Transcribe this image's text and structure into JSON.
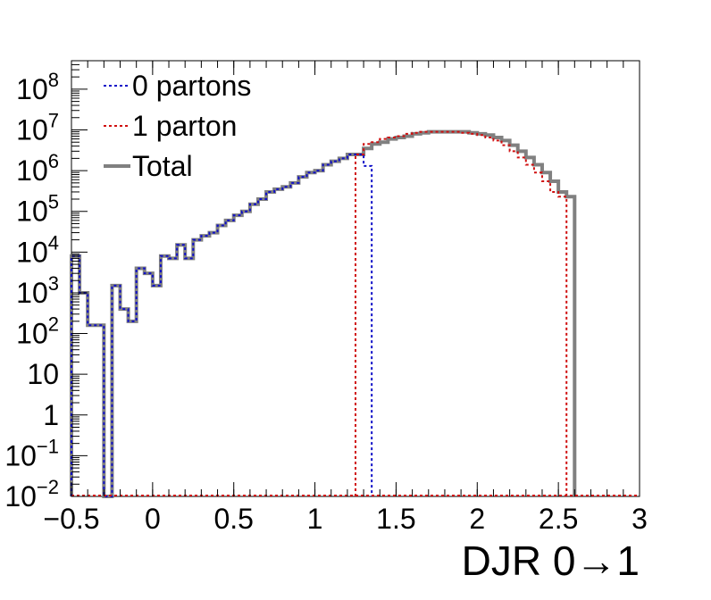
{
  "chart_data": {
    "type": "line",
    "style": "step-histogram",
    "xlabel": "DJR 0→1",
    "ylabel": "",
    "xlim": [
      -0.5,
      3.0
    ],
    "ylim": [
      0.01,
      500000000
    ],
    "y_scale": "log",
    "grid": false,
    "legend_position": "top-left",
    "x_ticks": [
      -0.5,
      0,
      0.5,
      1,
      1.5,
      2,
      2.5,
      3
    ],
    "x_tick_labels": [
      "−0.5",
      "0",
      "0.5",
      "1",
      "1.5",
      "2",
      "2.5",
      "3"
    ],
    "y_ticks": [
      {
        "value": 0.01,
        "base": "10",
        "exp": "−2"
      },
      {
        "value": 0.1,
        "base": "10",
        "exp": "−1"
      },
      {
        "value": 1,
        "base": "1",
        "exp": ""
      },
      {
        "value": 10,
        "base": "10",
        "exp": ""
      },
      {
        "value": 100,
        "base": "10",
        "exp": "2"
      },
      {
        "value": 1000,
        "base": "10",
        "exp": "3"
      },
      {
        "value": 10000,
        "base": "10",
        "exp": "4"
      },
      {
        "value": 100000,
        "base": "10",
        "exp": "5"
      },
      {
        "value": 1000000,
        "base": "10",
        "exp": "6"
      },
      {
        "value": 10000000,
        "base": "10",
        "exp": "7"
      },
      {
        "value": 100000000,
        "base": "10",
        "exp": "8"
      }
    ],
    "legend": [
      {
        "label": "0 partons",
        "color": "#1010c8",
        "style": "dotted"
      },
      {
        "label": "1 parton",
        "color": "#d01010",
        "style": "dotted"
      },
      {
        "label": "Total",
        "color": "#808080",
        "style": "solid"
      }
    ],
    "bin_width": 0.05,
    "series": [
      {
        "name": "Total",
        "color": "#808080",
        "x_start": -0.5,
        "values": [
          8000,
          1000,
          160,
          160,
          0.01,
          1500,
          400,
          200,
          4000,
          3000,
          1500,
          8000,
          7000,
          15000,
          7000,
          20000,
          25000,
          30000,
          45000,
          60000,
          80000,
          100000,
          150000,
          200000,
          300000,
          350000,
          400000,
          500000,
          700000,
          900000,
          1000000,
          1400000,
          1700000,
          2000000,
          2500000,
          2500000,
          3500000,
          4500000,
          5000000,
          6000000,
          6500000,
          7000000,
          8000000,
          8500000,
          9000000,
          9000000,
          9000000,
          9000000,
          9000000,
          8500000,
          8000000,
          7500000,
          6500000,
          5500000,
          4200000,
          3000000,
          2100000,
          1400000,
          900000,
          550000,
          300000,
          230000
        ]
      },
      {
        "name": "0 partons",
        "color": "#1010c8",
        "x_start": -0.5,
        "values": [
          8000,
          1000,
          160,
          160,
          0.01,
          1500,
          400,
          200,
          4000,
          3000,
          1500,
          8000,
          7000,
          15000,
          7000,
          20000,
          25000,
          30000,
          45000,
          60000,
          80000,
          100000,
          150000,
          200000,
          300000,
          350000,
          400000,
          500000,
          700000,
          900000,
          1000000,
          1400000,
          1700000,
          2000000,
          2500000,
          2500000,
          1300000
        ]
      },
      {
        "name": "1 parton",
        "color": "#d01010",
        "x_start": 1.25,
        "values": [
          2500000,
          4500000,
          5000000,
          6000000,
          6500000,
          7000000,
          8000000,
          8500000,
          9000000,
          9000000,
          9000000,
          9000000,
          9000000,
          8500000,
          8000000,
          7500000,
          6500000,
          5500000,
          4200000,
          3000000,
          2100000,
          1400000,
          900000,
          550000,
          300000,
          230000
        ]
      }
    ]
  }
}
